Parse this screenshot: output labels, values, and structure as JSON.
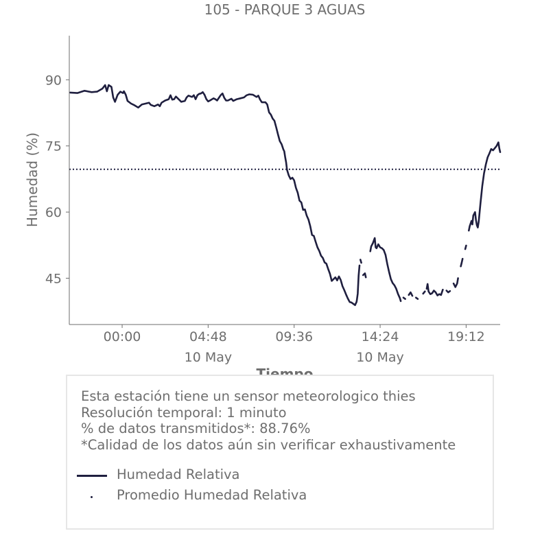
{
  "colors": {
    "series": "#1f1f3f",
    "text": "#6e6e6e",
    "axis": "#6e6e6e",
    "box_border": "#e6e6e6"
  },
  "info": {
    "lines": [
      "Esta estación tiene un sensor meteorologico thies",
      "Resolución temporal: 1 minuto",
      "% de datos transmitidos*: 88.76%",
      "*Calidad de los datos aún sin verificar exhaustivamente"
    ]
  },
  "legend": {
    "items": [
      {
        "label": "Humedad Relativa",
        "style": "solid-line"
      },
      {
        "label": "Promedio Humedad Relativa",
        "style": "dotted-line"
      }
    ]
  },
  "chart_data": {
    "type": "line",
    "title": "105 - PARQUE 3 AGUAS",
    "xlabel": "Tiempo",
    "ylabel": "Humedad (%)",
    "x_unit": "hours since 00:00 10 May",
    "xlim": [
      -2.95,
      21.1
    ],
    "ylim": [
      34.5,
      100
    ],
    "x_ticks": [
      {
        "value": 0,
        "label": "00:00",
        "sublabel": ""
      },
      {
        "value": 4.8,
        "label": "04:48",
        "sublabel": "10 May"
      },
      {
        "value": 9.6,
        "label": "09:36",
        "sublabel": ""
      },
      {
        "value": 14.4,
        "label": "14:24",
        "sublabel": "10 May"
      },
      {
        "value": 19.2,
        "label": "19:12",
        "sublabel": ""
      }
    ],
    "y_ticks": [
      {
        "value": 45,
        "label": "45"
      },
      {
        "value": 60,
        "label": "60"
      },
      {
        "value": 75,
        "label": "75"
      },
      {
        "value": 90,
        "label": "90"
      }
    ],
    "series": [
      {
        "name": "Humedad Relativa",
        "segments": [
          [
            [
              -2.9,
              87.1
            ],
            [
              -2.5,
              87.0
            ],
            [
              -2.1,
              87.5
            ],
            [
              -1.7,
              87.2
            ],
            [
              -1.4,
              87.3
            ],
            [
              -1.1,
              88.0
            ],
            [
              -0.95,
              88.8
            ],
            [
              -0.85,
              87.4
            ],
            [
              -0.75,
              88.8
            ],
            [
              -0.6,
              88.4
            ],
            [
              -0.5,
              86.0
            ],
            [
              -0.4,
              85.0
            ],
            [
              -0.25,
              86.6
            ],
            [
              -0.1,
              87.3
            ],
            [
              0.05,
              87.0
            ],
            [
              0.1,
              87.4
            ],
            [
              0.2,
              86.6
            ],
            [
              0.3,
              85.2
            ],
            [
              0.5,
              84.6
            ],
            [
              0.7,
              84.2
            ],
            [
              0.9,
              83.7
            ],
            [
              1.1,
              84.4
            ],
            [
              1.3,
              84.6
            ],
            [
              1.5,
              84.8
            ],
            [
              1.6,
              84.3
            ],
            [
              1.8,
              84.0
            ],
            [
              2.0,
              84.4
            ],
            [
              2.1,
              84.0
            ],
            [
              2.2,
              84.8
            ],
            [
              2.4,
              85.3
            ],
            [
              2.6,
              85.6
            ],
            [
              2.7,
              86.5
            ],
            [
              2.8,
              85.5
            ],
            [
              2.9,
              85.6
            ],
            [
              3.0,
              86.2
            ],
            [
              3.2,
              85.4
            ],
            [
              3.3,
              85.0
            ],
            [
              3.5,
              85.2
            ],
            [
              3.6,
              86.0
            ],
            [
              3.7,
              86.4
            ],
            [
              3.9,
              86.1
            ],
            [
              4.0,
              86.5
            ],
            [
              4.1,
              85.6
            ],
            [
              4.2,
              86.5
            ],
            [
              4.3,
              86.8
            ],
            [
              4.4,
              86.9
            ],
            [
              4.5,
              87.2
            ],
            [
              4.6,
              86.6
            ],
            [
              4.7,
              85.6
            ],
            [
              4.8,
              85.1
            ],
            [
              4.9,
              85.3
            ],
            [
              5.1,
              85.8
            ],
            [
              5.2,
              85.6
            ],
            [
              5.3,
              85.3
            ],
            [
              5.4,
              85.9
            ],
            [
              5.5,
              86.5
            ],
            [
              5.6,
              86.9
            ],
            [
              5.7,
              85.9
            ],
            [
              5.8,
              85.3
            ],
            [
              5.9,
              85.3
            ],
            [
              6.1,
              85.7
            ],
            [
              6.2,
              85.2
            ],
            [
              6.4,
              85.6
            ],
            [
              6.6,
              85.8
            ],
            [
              6.8,
              86.0
            ],
            [
              6.95,
              86.5
            ],
            [
              7.1,
              86.7
            ],
            [
              7.3,
              86.6
            ],
            [
              7.5,
              86.1
            ],
            [
              7.6,
              86.4
            ],
            [
              7.7,
              85.5
            ],
            [
              7.8,
              84.9
            ],
            [
              8.0,
              84.9
            ],
            [
              8.1,
              84.4
            ],
            [
              8.2,
              82.6
            ],
            [
              8.3,
              82.1
            ],
            [
              8.4,
              81.2
            ],
            [
              8.5,
              80.7
            ],
            [
              8.6,
              79.2
            ],
            [
              8.7,
              77.6
            ],
            [
              8.8,
              76.1
            ],
            [
              8.9,
              75.4
            ],
            [
              9.0,
              74.2
            ],
            [
              9.05,
              73.8
            ],
            [
              9.1,
              72.4
            ],
            [
              9.15,
              71.3
            ],
            [
              9.2,
              69.6
            ],
            [
              9.3,
              68.3
            ],
            [
              9.4,
              67.5
            ],
            [
              9.5,
              67.8
            ],
            [
              9.6,
              67.2
            ],
            [
              9.7,
              65.5
            ],
            [
              9.8,
              64.4
            ],
            [
              9.9,
              62.6
            ],
            [
              10.0,
              62.2
            ],
            [
              10.1,
              60.5
            ],
            [
              10.2,
              60.6
            ],
            [
              10.3,
              59.2
            ],
            [
              10.4,
              58.3
            ],
            [
              10.5,
              56.8
            ],
            [
              10.6,
              54.8
            ],
            [
              10.7,
              54.6
            ],
            [
              10.8,
              53.3
            ],
            [
              10.9,
              52.0
            ],
            [
              11.0,
              51.2
            ],
            [
              11.1,
              50.1
            ],
            [
              11.2,
              49.6
            ],
            [
              11.3,
              48.6
            ],
            [
              11.4,
              48.3
            ],
            [
              11.5,
              47.1
            ],
            [
              11.6,
              46.0
            ],
            [
              11.7,
              44.4
            ],
            [
              11.8,
              44.8
            ],
            [
              11.9,
              45.2
            ],
            [
              12.0,
              44.5
            ],
            [
              12.1,
              45.4
            ],
            [
              12.2,
              44.6
            ],
            [
              12.3,
              43.2
            ],
            [
              12.4,
              42.3
            ],
            [
              12.5,
              41.3
            ],
            [
              12.6,
              40.4
            ],
            [
              12.7,
              39.6
            ],
            [
              12.8,
              39.5
            ],
            [
              12.9,
              39.2
            ],
            [
              13.0,
              38.9
            ],
            [
              13.08,
              39.6
            ],
            [
              13.1,
              40.0
            ],
            [
              13.15,
              41.5
            ],
            [
              13.2,
              45.6
            ],
            [
              13.25,
              47.9
            ]
          ],
          [
            [
              13.3,
              49.2
            ],
            [
              13.35,
              48.5
            ]
          ],
          [
            [
              13.45,
              45.7
            ],
            [
              13.55,
              46.1
            ],
            [
              13.6,
              45.2
            ]
          ],
          [
            [
              13.85,
              51.1
            ],
            [
              13.9,
              52.2
            ],
            [
              14.0,
              53.0
            ],
            [
              14.1,
              54.1
            ],
            [
              14.15,
              52.0
            ],
            [
              14.2,
              51.8
            ],
            [
              14.3,
              52.7
            ],
            [
              14.4,
              52.0
            ],
            [
              14.5,
              51.8
            ],
            [
              14.6,
              51.4
            ],
            [
              14.7,
              50.3
            ],
            [
              14.8,
              48.2
            ],
            [
              14.9,
              46.4
            ],
            [
              15.0,
              44.8
            ],
            [
              15.1,
              43.9
            ],
            [
              15.2,
              43.4
            ],
            [
              15.3,
              42.6
            ],
            [
              15.4,
              41.4
            ],
            [
              15.5,
              40.5
            ],
            [
              15.55,
              39.8
            ]
          ],
          [
            [
              15.7,
              40.6
            ],
            [
              15.8,
              40.3
            ]
          ],
          [
            [
              16.0,
              41.2
            ],
            [
              16.1,
              41.8
            ],
            [
              16.2,
              41.0
            ]
          ],
          [
            [
              16.4,
              40.6
            ],
            [
              16.5,
              40.3
            ]
          ],
          [
            [
              16.8,
              41.5
            ],
            [
              16.9,
              42.0
            ]
          ],
          [
            [
              17.0,
              42.6
            ],
            [
              17.05,
              43.7
            ],
            [
              17.1,
              42.0
            ],
            [
              17.2,
              41.4
            ],
            [
              17.3,
              41.6
            ],
            [
              17.4,
              42.2
            ],
            [
              17.5,
              41.8
            ],
            [
              17.6,
              41.1
            ],
            [
              17.7,
              41.4
            ],
            [
              17.8,
              41.2
            ],
            [
              17.9,
              42.4
            ]
          ],
          [
            [
              18.1,
              42.2
            ],
            [
              18.2,
              41.8
            ],
            [
              18.3,
              42.1
            ]
          ],
          [
            [
              18.5,
              43.8
            ],
            [
              18.6,
              43.0
            ],
            [
              18.7,
              43.8
            ],
            [
              18.75,
              45.0
            ]
          ],
          [
            [
              18.9,
              47.7
            ],
            [
              18.95,
              48.5
            ],
            [
              19.0,
              49.4
            ]
          ],
          [
            [
              19.15,
              51.6
            ],
            [
              19.2,
              52.4
            ]
          ],
          [
            [
              19.35,
              55.8
            ],
            [
              19.4,
              56.8
            ],
            [
              19.5,
              58.0
            ],
            [
              19.55,
              57.2
            ],
            [
              19.6,
              59.2
            ],
            [
              19.7,
              60.0
            ],
            [
              19.75,
              58.2
            ],
            [
              19.8,
              57.0
            ],
            [
              19.85,
              56.5
            ],
            [
              19.9,
              57.8
            ],
            [
              20.0,
              62.0
            ],
            [
              20.1,
              65.9
            ],
            [
              20.2,
              68.8
            ],
            [
              20.3,
              70.8
            ],
            [
              20.4,
              72.4
            ],
            [
              20.5,
              73.3
            ],
            [
              20.6,
              74.3
            ],
            [
              20.7,
              74.0
            ],
            [
              20.8,
              74.5
            ],
            [
              20.9,
              75.0
            ],
            [
              21.0,
              75.8
            ],
            [
              21.05,
              74.5
            ],
            [
              21.1,
              73.6
            ]
          ]
        ]
      },
      {
        "name": "Promedio Humedad Relativa",
        "value": 69.7
      }
    ]
  }
}
